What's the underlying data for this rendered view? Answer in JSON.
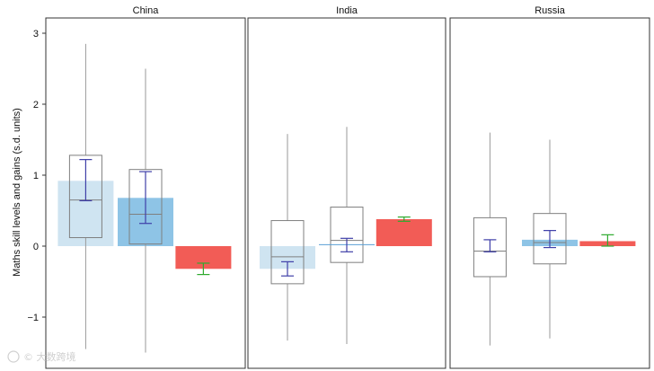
{
  "chart_data": {
    "type": "box",
    "ylabel": "Maths skill levels and gains (s.d. units)",
    "ylim": [
      -1.75,
      3.2
    ],
    "y_ticks": [
      {
        "value": 3,
        "label": "3"
      },
      {
        "value": 2,
        "label": "2"
      },
      {
        "value": 1,
        "label": "1"
      },
      {
        "value": 0,
        "label": "0"
      },
      {
        "value": -1,
        "label": "−1"
      }
    ],
    "grid": false,
    "legend": "none",
    "colors": {
      "panel_border": "#333333",
      "whisker": "#9a9a9a",
      "box_edge": "#7f7f7f",
      "ci_blue": "#3f3fa8",
      "ci_green": "#2eaa2e",
      "bar_light_blue": "#cfe4f1",
      "bar_mid_blue": "#8ec4e6",
      "bar_red": "#f25c56",
      "median_line": "#5a9fd4"
    },
    "facets": [
      {
        "title": "China",
        "groups": [
          {
            "box": {
              "whislo": -1.45,
              "q1": 0.12,
              "med": 0.65,
              "q3": 1.28,
              "whishi": 2.85
            },
            "bar": 0.92,
            "bar_color": "bar_light_blue",
            "ci": [
              0.64,
              1.22
            ],
            "ci_color": "ci_blue"
          },
          {
            "box": {
              "whislo": -1.5,
              "q1": 0.03,
              "med": 0.45,
              "q3": 1.08,
              "whishi": 2.5
            },
            "bar": 0.68,
            "bar_color": "bar_mid_blue",
            "ci": [
              0.32,
              1.05
            ],
            "ci_color": "ci_blue"
          },
          {
            "box": null,
            "bar": -0.32,
            "bar_color": "bar_red",
            "ci": [
              -0.4,
              -0.24
            ],
            "ci_color": "ci_green"
          }
        ]
      },
      {
        "title": "India",
        "groups": [
          {
            "box": {
              "whislo": -1.33,
              "q1": -0.53,
              "med": -0.15,
              "q3": 0.36,
              "whishi": 1.58
            },
            "bar": -0.32,
            "bar_color": "bar_light_blue",
            "ci": [
              -0.42,
              -0.22
            ],
            "ci_color": "ci_blue"
          },
          {
            "box": {
              "whislo": -1.38,
              "q1": -0.23,
              "med": 0.08,
              "q3": 0.55,
              "whishi": 1.68
            },
            "bar": 0.02,
            "bar_color": "median_line",
            "ci": [
              -0.08,
              0.11
            ],
            "ci_color": "ci_blue"
          },
          {
            "box": null,
            "bar": 0.38,
            "bar_color": "bar_red",
            "ci": [
              0.35,
              0.41
            ],
            "ci_color": "ci_green"
          }
        ]
      },
      {
        "title": "Russia",
        "groups": [
          {
            "box": {
              "whislo": -1.4,
              "q1": -0.43,
              "med": -0.07,
              "q3": 0.4,
              "whishi": 1.6
            },
            "bar": null,
            "bar_color": "bar_light_blue",
            "ci": [
              -0.08,
              0.09
            ],
            "ci_color": "ci_blue"
          },
          {
            "box": {
              "whislo": -1.3,
              "q1": -0.25,
              "med": 0.05,
              "q3": 0.46,
              "whishi": 1.5
            },
            "bar": 0.09,
            "bar_color": "bar_mid_blue",
            "ci": [
              -0.02,
              0.22
            ],
            "ci_color": "ci_blue"
          },
          {
            "box": null,
            "bar": 0.07,
            "bar_color": "bar_red",
            "ci": [
              0.0,
              0.16
            ],
            "ci_color": "ci_green"
          }
        ]
      }
    ]
  },
  "watermark": {
    "text": "© 大数跨境",
    "icon": "copyright-circle-icon"
  }
}
